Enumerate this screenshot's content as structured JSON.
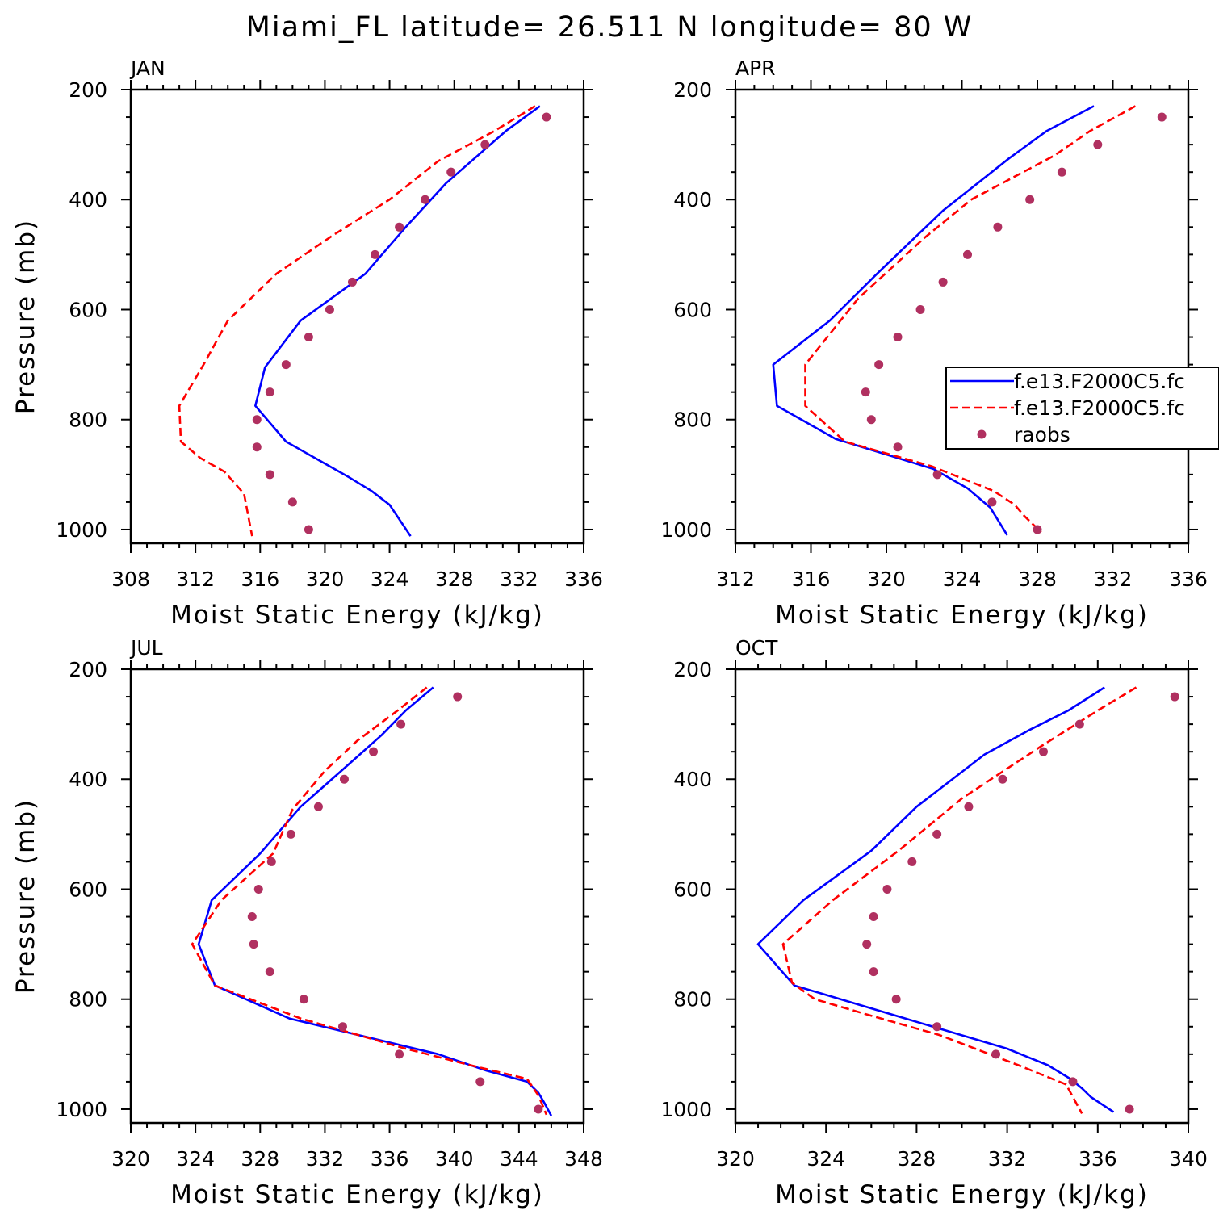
{
  "title": "Miami_FL  latitude= 26.511 N longitude= 80 W",
  "colors": {
    "model_a": "#0000ff",
    "model_b": "#ff0000",
    "raobs": "#b03060",
    "axis": "#000000"
  },
  "legend": {
    "panel": "APR",
    "entries": [
      {
        "label": "f.e13.F2000C5.fc",
        "style": "solid",
        "color": "#0000ff"
      },
      {
        "label": "f.e13.F2000C5.fc",
        "style": "dashed",
        "color": "#ff0000"
      },
      {
        "label": "raobs",
        "style": "marker",
        "color": "#b03060"
      }
    ]
  },
  "chart_data": [
    {
      "type": "line",
      "title": "JAN",
      "xlabel": "Moist Static Energy (kJ/kg)",
      "ylabel": "Pressure (mb)",
      "xlim": [
        308,
        336
      ],
      "xticks": [
        308,
        312,
        316,
        320,
        324,
        328,
        332,
        336
      ],
      "ylim": [
        200,
        1025
      ],
      "yticks": [
        200,
        400,
        600,
        800,
        1000
      ],
      "series": [
        {
          "name": "f.e13.F2000C5.fc (solid)",
          "style": "solid",
          "color": "#0000ff",
          "x": [
            333.3,
            331.2,
            327.5,
            325.0,
            322.5,
            318.5,
            316.3,
            315.7,
            317.6,
            321.5,
            322.9,
            324.0,
            325.3
          ],
          "pressure": [
            230,
            275,
            370,
            450,
            535,
            620,
            705,
            775,
            840,
            905,
            930,
            955,
            1012
          ]
        },
        {
          "name": "f.e13.F2000C5.fc (dashed)",
          "style": "dashed",
          "color": "#ff0000",
          "x": [
            333.0,
            330.5,
            327.0,
            324.0,
            320.5,
            317.0,
            314.0,
            312.5,
            311.0,
            311.1,
            312.3,
            313.8,
            315.0,
            315.5
          ],
          "pressure": [
            230,
            275,
            330,
            400,
            465,
            535,
            620,
            700,
            775,
            840,
            870,
            895,
            935,
            1012
          ]
        },
        {
          "name": "raobs",
          "style": "marker",
          "color": "#b03060",
          "x": [
            333.7,
            329.9,
            327.8,
            326.2,
            324.6,
            323.1,
            321.7,
            320.3,
            319.0,
            317.6,
            316.6,
            315.8,
            315.8,
            316.6,
            318.0,
            319.0
          ],
          "pressure": [
            250,
            300,
            350,
            400,
            450,
            500,
            550,
            600,
            650,
            700,
            750,
            800,
            850,
            900,
            950,
            1000
          ]
        }
      ]
    },
    {
      "type": "line",
      "title": "APR",
      "xlabel": "Moist Static Energy (kJ/kg)",
      "ylabel": "",
      "xlim": [
        312,
        336
      ],
      "xticks": [
        312,
        316,
        320,
        324,
        328,
        332,
        336
      ],
      "ylim": [
        200,
        1025
      ],
      "yticks": [
        200,
        400,
        600,
        800,
        1000
      ],
      "series": [
        {
          "name": "f.e13.F2000C5.fc (solid)",
          "style": "solid",
          "color": "#0000ff",
          "x": [
            331.0,
            328.5,
            326.5,
            323.0,
            319.5,
            317.0,
            314.0,
            314.2,
            317.3,
            322.5,
            324.3,
            325.5,
            326.4
          ],
          "pressure": [
            230,
            275,
            325,
            420,
            535,
            620,
            700,
            775,
            835,
            890,
            925,
            960,
            1010
          ]
        },
        {
          "name": "f.e13.F2000C5.fc (dashed)",
          "style": "dashed",
          "color": "#ff0000",
          "x": [
            333.2,
            330.8,
            328.9,
            324.5,
            322.0,
            318.5,
            315.7,
            315.7,
            317.8,
            322.4,
            325.7,
            326.8,
            327.3,
            328.2
          ],
          "pressure": [
            230,
            275,
            320,
            400,
            470,
            580,
            700,
            775,
            840,
            885,
            930,
            955,
            975,
            1005
          ]
        },
        {
          "name": "raobs",
          "style": "marker",
          "color": "#b03060",
          "x": [
            334.6,
            331.2,
            329.3,
            327.6,
            325.9,
            324.3,
            323.0,
            321.8,
            320.6,
            319.6,
            318.9,
            319.2,
            320.6,
            322.7,
            325.6,
            328.0
          ],
          "pressure": [
            250,
            300,
            350,
            400,
            450,
            500,
            550,
            600,
            650,
            700,
            750,
            800,
            850,
            900,
            950,
            1000
          ]
        }
      ]
    },
    {
      "type": "line",
      "title": "JUL",
      "xlabel": "Moist Static Energy (kJ/kg)",
      "ylabel": "Pressure (mb)",
      "xlim": [
        320,
        348
      ],
      "xticks": [
        320,
        324,
        328,
        332,
        336,
        340,
        344,
        348
      ],
      "ylim": [
        200,
        1025
      ],
      "yticks": [
        200,
        400,
        600,
        800,
        1000
      ],
      "series": [
        {
          "name": "f.e13.F2000C5.fc (solid)",
          "style": "solid",
          "color": "#0000ff",
          "x": [
            338.7,
            337.0,
            335.5,
            333.2,
            330.5,
            328.0,
            325.0,
            324.2,
            325.2,
            329.8,
            339.0,
            342.0,
            344.5,
            345.2,
            345.6,
            346.0
          ],
          "pressure": [
            233,
            275,
            320,
            380,
            450,
            535,
            620,
            700,
            775,
            835,
            900,
            930,
            950,
            970,
            990,
            1012
          ]
        },
        {
          "name": "f.e13.F2000C5.fc (dashed)",
          "style": "dashed",
          "color": "#ff0000",
          "x": [
            338.3,
            336.5,
            334.0,
            332.0,
            330.0,
            328.8,
            325.6,
            323.8,
            325.2,
            330.5,
            337.0,
            341.0,
            344.5,
            345.2,
            345.7
          ],
          "pressure": [
            233,
            275,
            330,
            385,
            455,
            535,
            620,
            700,
            775,
            835,
            890,
            920,
            945,
            975,
            1010
          ]
        },
        {
          "name": "raobs",
          "style": "marker",
          "color": "#b03060",
          "x": [
            340.2,
            336.7,
            335.0,
            333.2,
            331.6,
            329.9,
            328.7,
            327.9,
            327.5,
            327.6,
            328.6,
            330.7,
            333.1,
            336.6,
            341.6,
            345.2
          ],
          "pressure": [
            250,
            300,
            350,
            400,
            450,
            500,
            550,
            600,
            650,
            700,
            750,
            800,
            850,
            900,
            950,
            1000
          ]
        }
      ]
    },
    {
      "type": "line",
      "title": "OCT",
      "xlabel": "Moist Static Energy (kJ/kg)",
      "ylabel": "",
      "xlim": [
        320,
        340
      ],
      "xticks": [
        320,
        324,
        328,
        332,
        336,
        340
      ],
      "ylim": [
        200,
        1025
      ],
      "yticks": [
        200,
        400,
        600,
        800,
        1000
      ],
      "series": [
        {
          "name": "f.e13.F2000C5.fc (solid)",
          "style": "solid",
          "color": "#0000ff",
          "x": [
            336.3,
            334.7,
            333.0,
            331.0,
            328.0,
            326.0,
            323.0,
            321.0,
            322.6,
            327.5,
            332.0,
            333.8,
            334.8,
            335.3,
            335.7,
            336.7
          ],
          "pressure": [
            233,
            275,
            310,
            355,
            450,
            530,
            620,
            700,
            775,
            835,
            890,
            920,
            945,
            962,
            978,
            1005
          ]
        },
        {
          "name": "f.e13.F2000C5.fc (dashed)",
          "style": "dashed",
          "color": "#ff0000",
          "x": [
            337.7,
            336.0,
            333.5,
            330.0,
            327.2,
            324.3,
            322.1,
            322.5,
            323.5,
            326.0,
            329.0,
            332.5,
            334.6,
            335.3
          ],
          "pressure": [
            233,
            275,
            340,
            435,
            530,
            620,
            700,
            770,
            800,
            830,
            865,
            920,
            955,
            1008
          ]
        },
        {
          "name": "raobs",
          "style": "marker",
          "color": "#b03060",
          "x": [
            339.4,
            335.2,
            333.6,
            331.8,
            330.3,
            328.9,
            327.8,
            326.7,
            326.1,
            325.8,
            326.1,
            327.1,
            328.9,
            331.5,
            334.9,
            337.4
          ],
          "pressure": [
            250,
            300,
            350,
            400,
            450,
            500,
            550,
            600,
            650,
            700,
            750,
            800,
            850,
            900,
            950,
            1000
          ]
        }
      ]
    }
  ]
}
